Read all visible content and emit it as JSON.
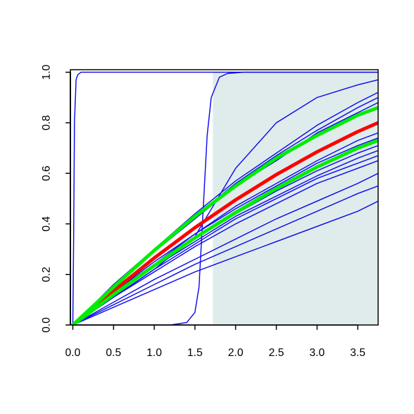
{
  "chart_data": {
    "type": "line",
    "xlim": [
      -0.03,
      3.75
    ],
    "ylim": [
      0,
      1.01
    ],
    "xticks": [
      {
        "value": 0,
        "label": "0.0"
      },
      {
        "value": 0.5,
        "label": "0.5"
      },
      {
        "value": 1,
        "label": "1.0"
      },
      {
        "value": 1.5,
        "label": "1.5"
      },
      {
        "value": 2,
        "label": "2.0"
      },
      {
        "value": 2.5,
        "label": "2.5"
      },
      {
        "value": 3,
        "label": "3.0"
      },
      {
        "value": 3.5,
        "label": "3.5"
      }
    ],
    "yticks": [
      {
        "value": 0,
        "label": "0.0"
      },
      {
        "value": 0.2,
        "label": "0.2"
      },
      {
        "value": 0.4,
        "label": "0.4"
      },
      {
        "value": 0.6,
        "label": "0.6"
      },
      {
        "value": 0.8,
        "label": "0.8"
      },
      {
        "value": 1,
        "label": "1.0"
      }
    ],
    "shade": {
      "xmin": 1.72,
      "xmax": 3.75,
      "ymin": 0,
      "ymax": 1,
      "color": "#e0ecec"
    },
    "series": [
      {
        "color": "#1010ee",
        "line_width": 1.5,
        "x": [
          0,
          0.5,
          1,
          1.5,
          2,
          2.5,
          3,
          3.5,
          3.75
        ],
        "values": [
          0,
          0.16,
          0.3,
          0.44,
          0.57,
          0.68,
          0.79,
          0.88,
          0.92
        ]
      },
      {
        "color": "#1010ee",
        "line_width": 1.5,
        "x": [
          0,
          0.5,
          1,
          1.5,
          2,
          2.5,
          3,
          3.5,
          3.75
        ],
        "values": [
          0,
          0.15,
          0.3,
          0.43,
          0.56,
          0.67,
          0.77,
          0.86,
          0.9
        ]
      },
      {
        "color": "#1010ee",
        "line_width": 1.5,
        "x": [
          0,
          0.5,
          1,
          1.5,
          2,
          2.5,
          3,
          3.5,
          3.75
        ],
        "values": [
          0,
          0.15,
          0.29,
          0.42,
          0.55,
          0.65,
          0.76,
          0.84,
          0.88
        ]
      },
      {
        "color": "#1010ee",
        "line_width": 1.5,
        "x": [
          0,
          0.5,
          1,
          1.5,
          2,
          2.5,
          3,
          3.5,
          3.75
        ],
        "values": [
          0,
          0.11,
          0.22,
          0.35,
          0.62,
          0.8,
          0.9,
          0.95,
          0.97
        ]
      },
      {
        "color": "#1010ee",
        "line_width": 1.5,
        "x": [
          0,
          0.5,
          1,
          1.5,
          2,
          2.5,
          3,
          3.5,
          3.75
        ],
        "values": [
          0,
          0.13,
          0.25,
          0.36,
          0.47,
          0.56,
          0.65,
          0.73,
          0.76
        ]
      },
      {
        "color": "#1010ee",
        "line_width": 1.5,
        "x": [
          0,
          0.5,
          1,
          1.5,
          2,
          2.5,
          3,
          3.5,
          3.75
        ],
        "values": [
          0,
          0.13,
          0.24,
          0.36,
          0.46,
          0.55,
          0.64,
          0.71,
          0.74
        ]
      },
      {
        "color": "#1010ee",
        "line_width": 1.5,
        "x": [
          0,
          0.5,
          1,
          1.5,
          2,
          2.5,
          3,
          3.5,
          3.75
        ],
        "values": [
          0,
          0.12,
          0.23,
          0.34,
          0.44,
          0.53,
          0.61,
          0.68,
          0.71
        ]
      },
      {
        "color": "#1010ee",
        "line_width": 1.5,
        "x": [
          0,
          0.5,
          1,
          1.5,
          2,
          2.5,
          3,
          3.5,
          3.75
        ],
        "values": [
          0,
          0.12,
          0.23,
          0.33,
          0.43,
          0.51,
          0.59,
          0.66,
          0.69
        ]
      },
      {
        "color": "#1010ee",
        "line_width": 1.5,
        "x": [
          0,
          0.5,
          1,
          1.5,
          2,
          2.5,
          3,
          3.5,
          3.75
        ],
        "values": [
          0,
          0.11,
          0.22,
          0.32,
          0.42,
          0.5,
          0.58,
          0.64,
          0.67
        ]
      },
      {
        "color": "#1010ee",
        "line_width": 1.5,
        "x": [
          0,
          0.5,
          1,
          1.5,
          2,
          2.5,
          3,
          3.5,
          3.75
        ],
        "values": [
          0,
          0.11,
          0.21,
          0.31,
          0.4,
          0.48,
          0.56,
          0.62,
          0.65
        ]
      },
      {
        "color": "#1010ee",
        "line_width": 1.5,
        "x": [
          0,
          0.5,
          1,
          1.5,
          2,
          2.5,
          3,
          3.5,
          3.75
        ],
        "values": [
          0,
          0.09,
          0.18,
          0.26,
          0.34,
          0.42,
          0.49,
          0.56,
          0.6
        ]
      },
      {
        "color": "#1010ee",
        "line_width": 1.5,
        "x": [
          0,
          0.5,
          1,
          1.5,
          2,
          2.5,
          3,
          3.5,
          3.75
        ],
        "values": [
          0,
          0.08,
          0.16,
          0.24,
          0.31,
          0.38,
          0.45,
          0.52,
          0.55
        ]
      },
      {
        "color": "#1010ee",
        "line_width": 1.5,
        "x": [
          0,
          0.5,
          1,
          1.5,
          2,
          2.5,
          3,
          3.5,
          3.75
        ],
        "values": [
          0,
          0.07,
          0.14,
          0.21,
          0.27,
          0.33,
          0.39,
          0.45,
          0.49
        ]
      },
      {
        "color": "#1010ee",
        "line_width": 1.5,
        "x": [
          0,
          0.01,
          0.02,
          0.04,
          0.06,
          0.1,
          3.75
        ],
        "values": [
          0,
          0.35,
          0.8,
          0.97,
          0.99,
          1,
          1
        ]
      },
      {
        "color": "#1010ee",
        "line_width": 1.5,
        "x": [
          0,
          1.2,
          1.4,
          1.5,
          1.55,
          1.6,
          1.65,
          1.7,
          1.8,
          1.9,
          2.1,
          3.75
        ],
        "values": [
          0,
          0,
          0.01,
          0.05,
          0.15,
          0.45,
          0.75,
          0.9,
          0.98,
          0.995,
          1,
          1
        ]
      },
      {
        "color": "#ff0000",
        "line_width": 5,
        "x": [
          0,
          0.5,
          1,
          1.5,
          2,
          2.5,
          3,
          3.5,
          3.75
        ],
        "values": [
          0,
          0.135,
          0.265,
          0.385,
          0.495,
          0.595,
          0.685,
          0.765,
          0.8
        ]
      },
      {
        "color": "#00ee00",
        "line_width": 5,
        "x": [
          0,
          0.5,
          1,
          1.5,
          2,
          2.5,
          3,
          3.5,
          3.75
        ],
        "values": [
          0,
          0.15,
          0.295,
          0.43,
          0.55,
          0.66,
          0.75,
          0.83,
          0.86
        ]
      },
      {
        "color": "#00ee00",
        "line_width": 5,
        "x": [
          0,
          0.5,
          1,
          1.5,
          2,
          2.5,
          3,
          3.5,
          3.75
        ],
        "values": [
          0,
          0.12,
          0.235,
          0.345,
          0.445,
          0.54,
          0.625,
          0.7,
          0.73
        ]
      }
    ]
  }
}
